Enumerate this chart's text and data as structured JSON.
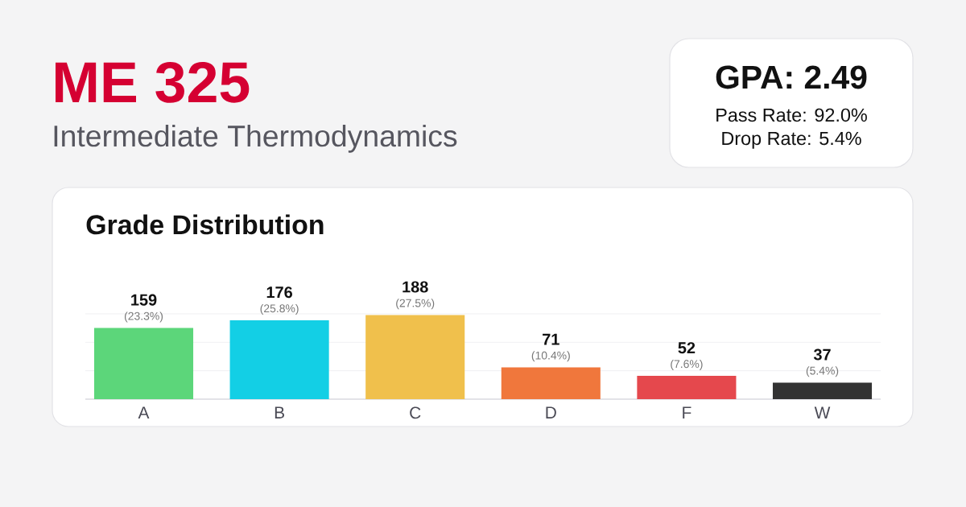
{
  "chart_data": {
    "type": "bar",
    "title": "ME 325",
    "subtitle": "Intermediate Thermodynamics",
    "categories": [
      "A",
      "B",
      "C",
      "D",
      "F",
      "W"
    ],
    "values": [
      159,
      176,
      188,
      71,
      52,
      37
    ],
    "colors": [
      "#5cd67a",
      "#13cfe5",
      "#f0c04c",
      "#f0773c",
      "#e5484d",
      "#333333"
    ],
    "data_labels": true,
    "annotations": [
      "Grade Distribution",
      "GPA: 2.49",
      "Pass Rate: 92.0%",
      "Drop Rate: 5.4%",
      {
        "text": "(23.3%)",
        "x": "A",
        "y": 159
      },
      {
        "text": "(25.8%)",
        "x": "B",
        "y": 176
      },
      {
        "text": "(27.5%)",
        "x": "C",
        "y": 188
      },
      {
        "text": "(10.4%)",
        "x": "D",
        "y": 71
      },
      {
        "text": "(7.6%)",
        "x": "F",
        "y": 52
      },
      {
        "text": "(5.4%)",
        "x": "W",
        "y": 37
      }
    ],
    "ylim": [
      0,
      190.5
    ],
    "yticks": [
      {
        "value": 0,
        "label": null
      },
      {
        "value": 63.5,
        "label": null
      },
      {
        "value": 127,
        "label": null
      },
      {
        "value": 190.5,
        "label": null
      }
    ],
    "grid": "y",
    "tick_labels": "x"
  }
}
